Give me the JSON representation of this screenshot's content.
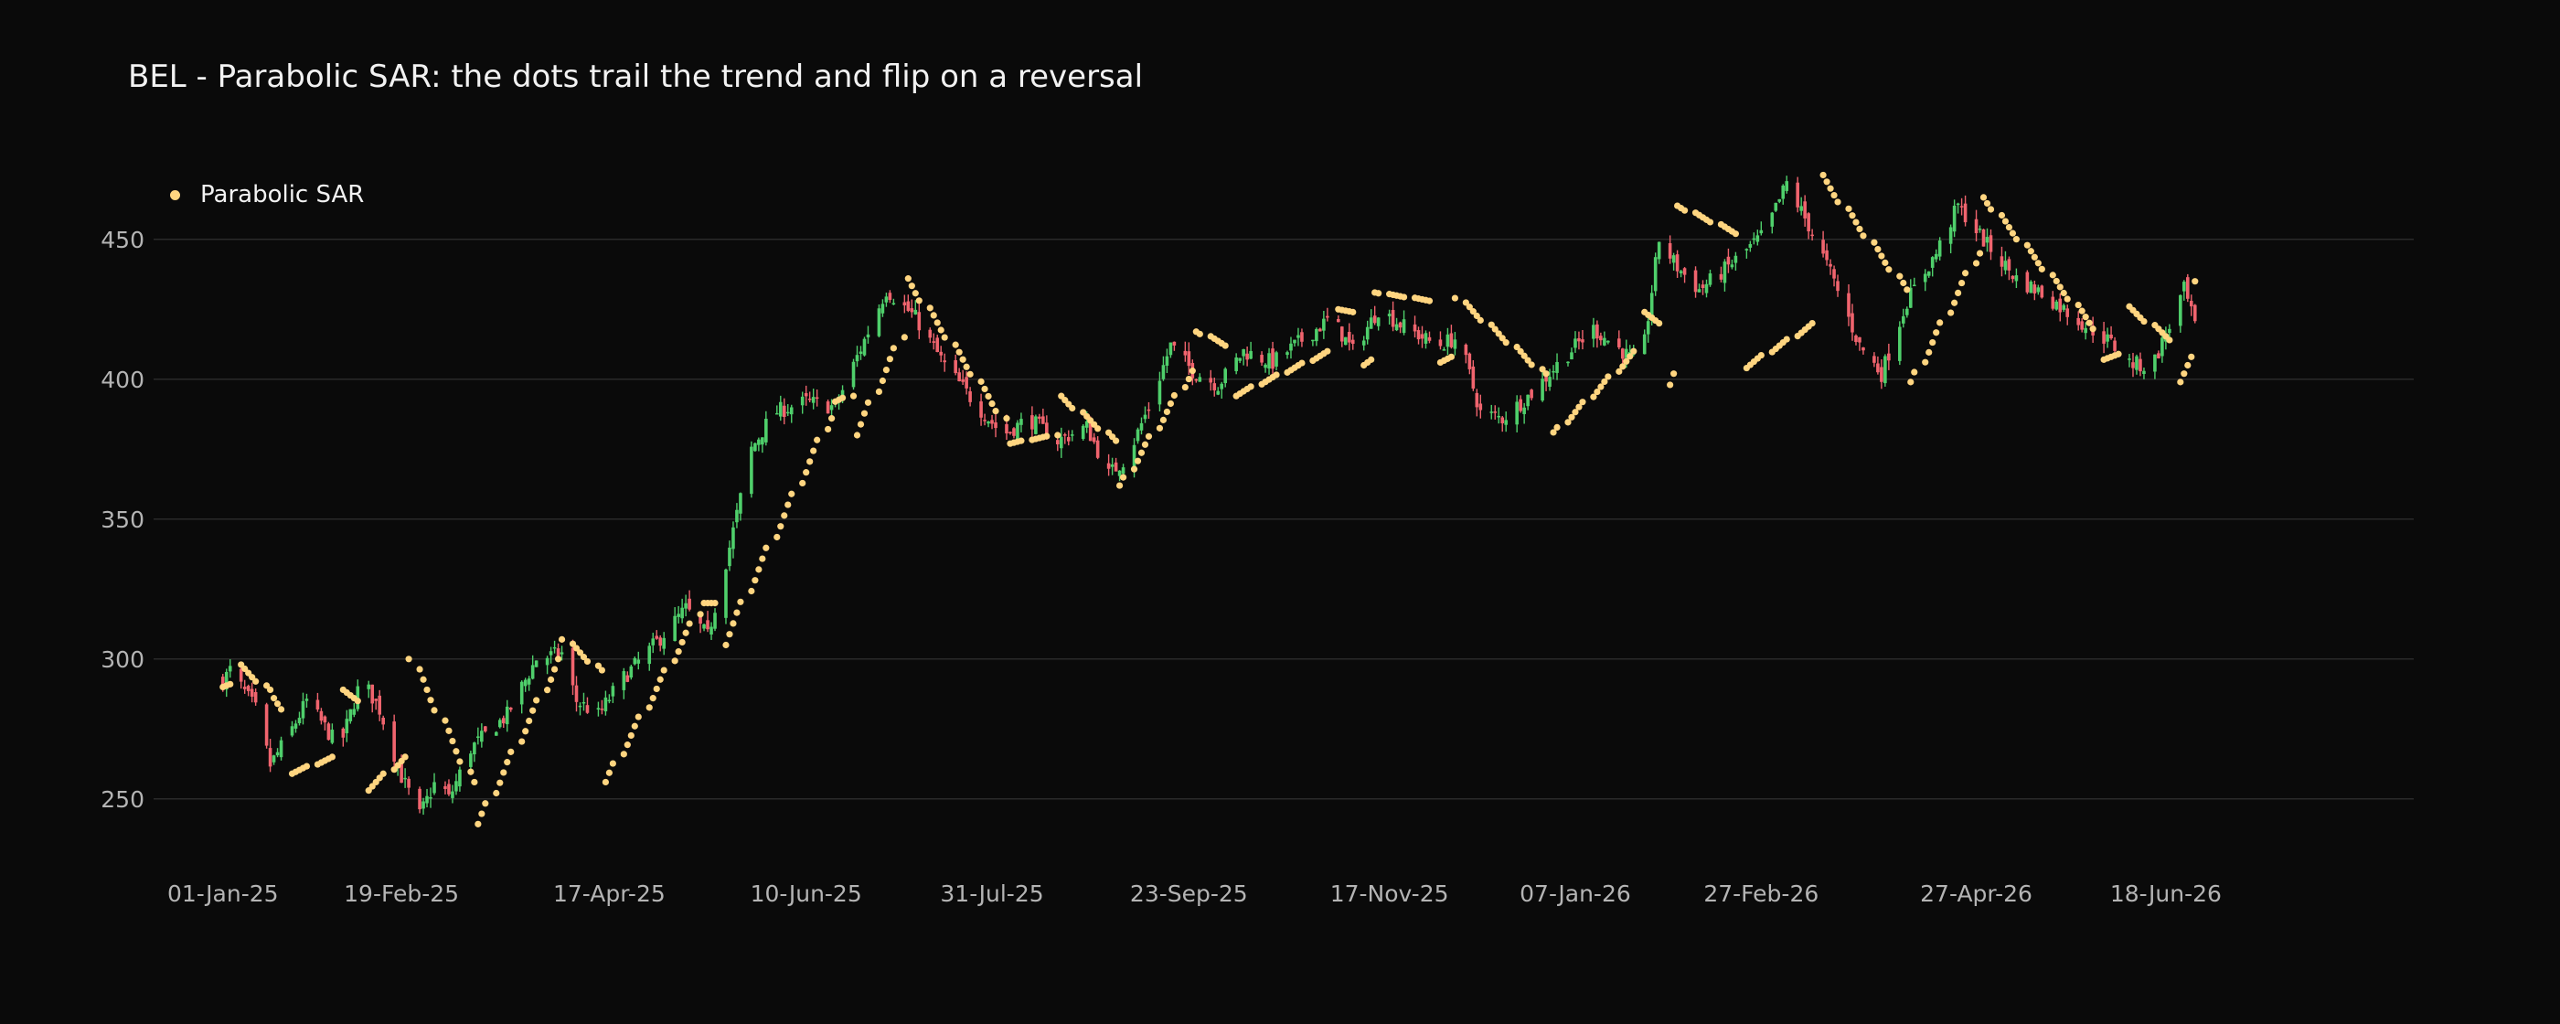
{
  "colors": {
    "background": "#0a0a0a",
    "grid": "#2a2a2a",
    "up": "#4fcf6b",
    "down": "#f0646e",
    "sar": "#ffd580"
  },
  "chart_data": {
    "type": "candlestick",
    "title": "BEL - Parabolic SAR: the dots trail the trend and flip on a reversal",
    "legend": {
      "position": "top-left",
      "entries": [
        "Parabolic SAR"
      ]
    },
    "grid": "horizontal",
    "x_range": [
      "2024-12-13",
      "2026-08-25"
    ],
    "ylim": [
      230,
      480
    ],
    "y_ticks": [
      250,
      300,
      350,
      400,
      450
    ],
    "x_ticks": [
      {
        "date": "2025-01-01",
        "label": "01-Jan-25"
      },
      {
        "date": "2025-02-19",
        "label": "19-Feb-25"
      },
      {
        "date": "2025-04-17",
        "label": "17-Apr-25"
      },
      {
        "date": "2025-06-10",
        "label": "10-Jun-25"
      },
      {
        "date": "2025-07-31",
        "label": "31-Jul-25"
      },
      {
        "date": "2025-09-23",
        "label": "23-Sep-25"
      },
      {
        "date": "2025-11-17",
        "label": "17-Nov-25"
      },
      {
        "date": "2026-01-07",
        "label": "07-Jan-26"
      },
      {
        "date": "2026-02-27",
        "label": "27-Feb-26"
      },
      {
        "date": "2026-04-27",
        "label": "27-Apr-26"
      },
      {
        "date": "2026-06-18",
        "label": "18-Jun-26"
      }
    ],
    "start_date": "2025-01-01",
    "end_date": "2026-06-28",
    "series": [
      {
        "name": "Parabolic SAR",
        "type": "scatter"
      }
    ],
    "close_path": [
      [
        "2025-01-01",
        292
      ],
      [
        "2025-01-03",
        296
      ],
      [
        "2025-01-10",
        282
      ],
      [
        "2025-01-14",
        262
      ],
      [
        "2025-01-20",
        275
      ],
      [
        "2025-01-24",
        285
      ],
      [
        "2025-02-02",
        268
      ],
      [
        "2025-02-08",
        293
      ],
      [
        "2025-02-13",
        282
      ],
      [
        "2025-02-19",
        258
      ],
      [
        "2025-02-24",
        244
      ],
      [
        "2025-03-01",
        258
      ],
      [
        "2025-03-04",
        250
      ],
      [
        "2025-03-10",
        268
      ],
      [
        "2025-03-20",
        280
      ],
      [
        "2025-03-28",
        300
      ],
      [
        "2025-04-04",
        302
      ],
      [
        "2025-04-08",
        285
      ],
      [
        "2025-04-14",
        280
      ],
      [
        "2025-04-20",
        292
      ],
      [
        "2025-04-30",
        306
      ],
      [
        "2025-05-08",
        318
      ],
      [
        "2025-05-14",
        308
      ],
      [
        "2025-05-20",
        340
      ],
      [
        "2025-05-26",
        375
      ],
      [
        "2025-06-01",
        388
      ],
      [
        "2025-06-10",
        392
      ],
      [
        "2025-06-18",
        390
      ],
      [
        "2025-06-24",
        408
      ],
      [
        "2025-07-02",
        432
      ],
      [
        "2025-07-10",
        422
      ],
      [
        "2025-07-18",
        405
      ],
      [
        "2025-07-26",
        392
      ],
      [
        "2025-08-03",
        380
      ],
      [
        "2025-08-10",
        386
      ],
      [
        "2025-08-18",
        378
      ],
      [
        "2025-08-26",
        383
      ],
      [
        "2025-09-01",
        366
      ],
      [
        "2025-09-06",
        372
      ],
      [
        "2025-09-12",
        390
      ],
      [
        "2025-09-18",
        412
      ],
      [
        "2025-09-24",
        403
      ],
      [
        "2025-10-01",
        398
      ],
      [
        "2025-10-08",
        410
      ],
      [
        "2025-10-16",
        406
      ],
      [
        "2025-10-24",
        414
      ],
      [
        "2025-11-01",
        422
      ],
      [
        "2025-11-07",
        410
      ],
      [
        "2025-11-14",
        425
      ],
      [
        "2025-11-22",
        418
      ],
      [
        "2025-11-30",
        412
      ],
      [
        "2025-12-06",
        415
      ],
      [
        "2025-12-12",
        388
      ],
      [
        "2025-12-18",
        386
      ],
      [
        "2025-12-26",
        395
      ],
      [
        "2026-01-04",
        408
      ],
      [
        "2026-01-12",
        418
      ],
      [
        "2026-01-20",
        410
      ],
      [
        "2026-01-25",
        404
      ],
      [
        "2026-01-30",
        450
      ],
      [
        "2026-02-04",
        440
      ],
      [
        "2026-02-10",
        432
      ],
      [
        "2026-02-16",
        438
      ],
      [
        "2026-02-22",
        445
      ],
      [
        "2026-02-28",
        452
      ],
      [
        "2026-03-06",
        470
      ],
      [
        "2026-03-12",
        455
      ],
      [
        "2026-03-18",
        438
      ],
      [
        "2026-03-26",
        412
      ],
      [
        "2026-04-01",
        402
      ],
      [
        "2026-04-08",
        428
      ],
      [
        "2026-04-16",
        445
      ],
      [
        "2026-04-22",
        462
      ],
      [
        "2026-04-30",
        448
      ],
      [
        "2026-05-08",
        436
      ],
      [
        "2026-05-16",
        430
      ],
      [
        "2026-05-24",
        422
      ],
      [
        "2026-06-02",
        414
      ],
      [
        "2026-06-08",
        406
      ],
      [
        "2026-06-14",
        404
      ],
      [
        "2026-06-18",
        416
      ],
      [
        "2026-06-23",
        432
      ],
      [
        "2026-06-28",
        410
      ]
    ],
    "sar_segments": [
      {
        "from": "2025-01-01",
        "to": "2025-01-04",
        "v0": 290,
        "v1": 291
      },
      {
        "from": "2025-01-05",
        "to": "2025-01-14",
        "v0": 298,
        "v1": 289
      },
      {
        "from": "2025-01-15",
        "to": "2025-01-17",
        "v0": 286,
        "v1": 282
      },
      {
        "from": "2025-01-20",
        "to": "2025-02-01",
        "v0": 259,
        "v1": 265
      },
      {
        "from": "2025-02-02",
        "to": "2025-02-07",
        "v0": 289,
        "v1": 285
      },
      {
        "from": "2025-02-08",
        "to": "2025-02-20",
        "v0": 253,
        "v1": 265
      },
      {
        "from": "2025-02-21",
        "to": "2025-03-11",
        "v0": 300,
        "v1": 256
      },
      {
        "from": "2025-03-12",
        "to": "2025-04-03",
        "v0": 241,
        "v1": 300
      },
      {
        "from": "2025-04-04",
        "to": "2025-04-15",
        "v0": 307,
        "v1": 296
      },
      {
        "from": "2025-04-16",
        "to": "2025-05-12",
        "v0": 256,
        "v1": 316
      },
      {
        "from": "2025-05-13",
        "to": "2025-05-16",
        "v0": 320,
        "v1": 320
      },
      {
        "from": "2025-05-17",
        "to": "2025-06-17",
        "v0": 305,
        "v1": 386
      },
      {
        "from": "2025-06-18",
        "to": "2025-06-23",
        "v0": 392,
        "v1": 394
      },
      {
        "from": "2025-06-24",
        "to": "2025-07-07",
        "v0": 380,
        "v1": 415
      },
      {
        "from": "2025-07-08",
        "to": "2025-08-04",
        "v0": 436,
        "v1": 386
      },
      {
        "from": "2025-08-05",
        "to": "2025-08-18",
        "v0": 377,
        "v1": 380
      },
      {
        "from": "2025-08-19",
        "to": "2025-09-03",
        "v0": 394,
        "v1": 378
      },
      {
        "from": "2025-09-04",
        "to": "2025-09-24",
        "v0": 362,
        "v1": 403
      },
      {
        "from": "2025-09-25",
        "to": "2025-10-04",
        "v0": 417,
        "v1": 412
      },
      {
        "from": "2025-10-05",
        "to": "2025-11-01",
        "v0": 394,
        "v1": 410
      },
      {
        "from": "2025-11-02",
        "to": "2025-11-07",
        "v0": 425,
        "v1": 424
      },
      {
        "from": "2025-11-08",
        "to": "2025-11-12",
        "v0": 405,
        "v1": 407
      },
      {
        "from": "2025-11-13",
        "to": "2025-11-30",
        "v0": 431,
        "v1": 428
      },
      {
        "from": "2025-12-01",
        "to": "2025-12-04",
        "v0": 406,
        "v1": 408
      },
      {
        "from": "2025-12-05",
        "to": "2025-12-30",
        "v0": 429,
        "v1": 402
      },
      {
        "from": "2026-01-01",
        "to": "2026-01-23",
        "v0": 381,
        "v1": 410
      },
      {
        "from": "2026-01-24",
        "to": "2026-01-30",
        "v0": 424,
        "v1": 420
      },
      {
        "from": "2026-01-31",
        "to": "2026-02-03",
        "v0": 398,
        "v1": 402
      },
      {
        "from": "2026-02-04",
        "to": "2026-02-22",
        "v0": 462,
        "v1": 452
      },
      {
        "from": "2026-02-23",
        "to": "2026-03-13",
        "v0": 404,
        "v1": 420
      },
      {
        "from": "2026-03-14",
        "to": "2026-04-08",
        "v0": 473,
        "v1": 432
      },
      {
        "from": "2026-04-09",
        "to": "2026-04-28",
        "v0": 399,
        "v1": 445
      },
      {
        "from": "2026-04-29",
        "to": "2026-05-31",
        "v0": 465,
        "v1": 418
      },
      {
        "from": "2026-06-01",
        "to": "2026-06-06",
        "v0": 407,
        "v1": 409
      },
      {
        "from": "2026-06-07",
        "to": "2026-06-20",
        "v0": 426,
        "v1": 414
      },
      {
        "from": "2026-06-21",
        "to": "2026-06-25",
        "v0": 399,
        "v1": 408
      },
      {
        "from": "2026-06-26",
        "to": "2026-06-28",
        "v0": 435,
        "v1": 435
      }
    ]
  }
}
